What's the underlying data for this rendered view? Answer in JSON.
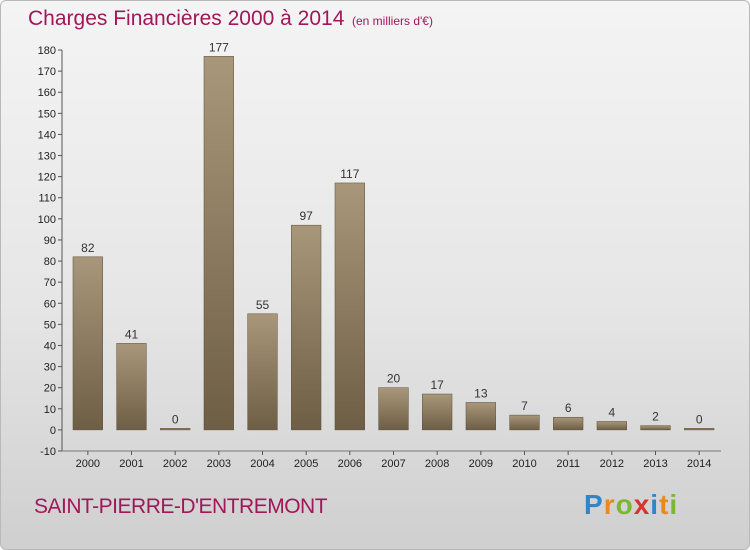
{
  "chart_data": {
    "type": "bar",
    "title": "Charges Financières 2000 à 2014",
    "subtitle": "(en milliers d'€)",
    "categories": [
      "2000",
      "2001",
      "2002",
      "2003",
      "2004",
      "2005",
      "2006",
      "2007",
      "2008",
      "2009",
      "2010",
      "2011",
      "2012",
      "2013",
      "2014"
    ],
    "values": [
      82,
      41,
      0,
      177,
      55,
      97,
      117,
      20,
      17,
      13,
      7,
      6,
      4,
      2,
      0
    ],
    "ylim": [
      -10,
      180
    ],
    "yticks": [
      -10,
      0,
      10,
      20,
      30,
      40,
      50,
      60,
      70,
      80,
      90,
      100,
      110,
      120,
      130,
      140,
      150,
      160,
      170,
      180
    ],
    "grid": false,
    "bar_color": "#8c7a5e"
  },
  "footer": {
    "commune": "SAINT-PIERRE-D'ENTREMONT",
    "logo_letters": [
      "P",
      "r",
      "o",
      "x",
      "i",
      "t",
      "i"
    ]
  }
}
